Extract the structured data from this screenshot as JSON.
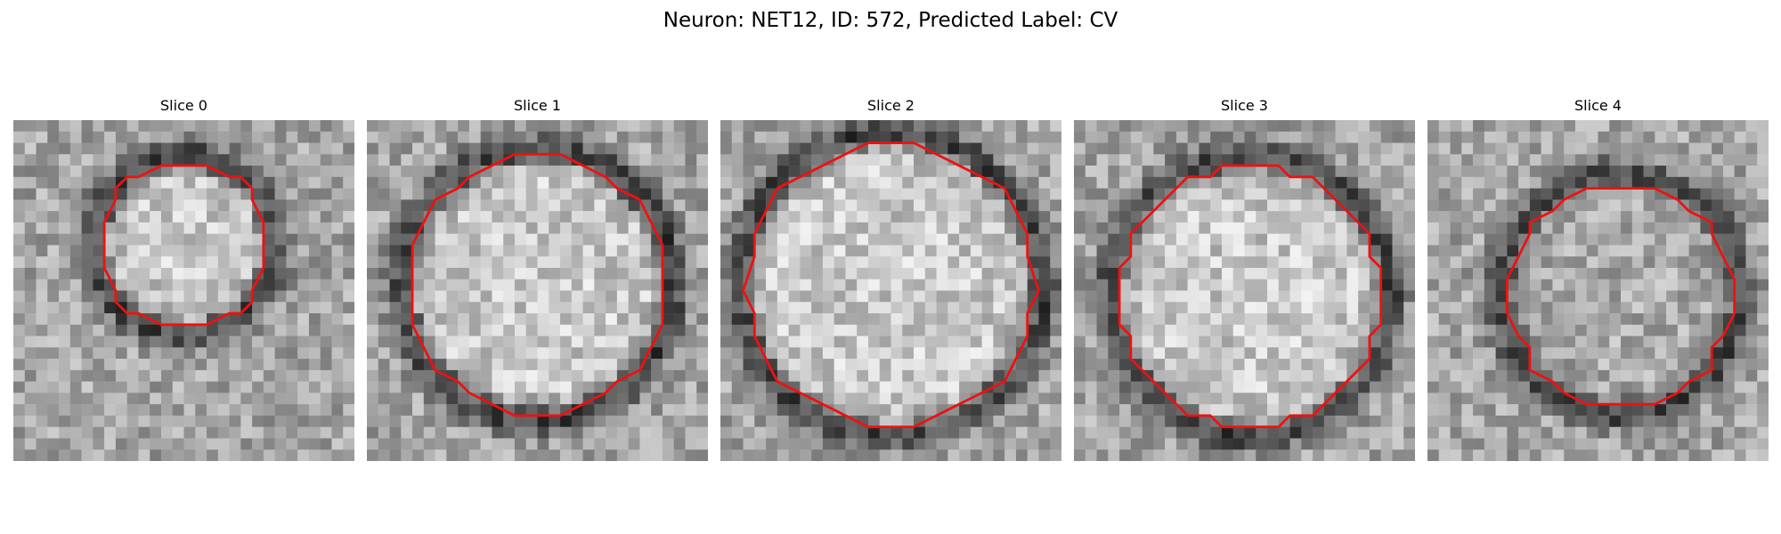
{
  "figure": {
    "title": "Neuron: NET12, ID: 572, Predicted Label: CV",
    "contour_color": "#ee1111"
  },
  "slices": [
    {
      "title": "Slice 0",
      "seed": 11,
      "radius": 7.2,
      "cx": 15,
      "cy": 11,
      "center_bright": true
    },
    {
      "title": "Slice 1",
      "seed": 23,
      "radius": 11.2,
      "cx": 15,
      "cy": 14.5,
      "center_bright": true
    },
    {
      "title": "Slice 2",
      "seed": 37,
      "radius": 12.6,
      "cx": 15,
      "cy": 14.5,
      "center_bright": true
    },
    {
      "title": "Slice 3",
      "seed": 49,
      "radius": 11.6,
      "cx": 15.5,
      "cy": 15.5,
      "center_bright": true
    },
    {
      "title": "Slice 4",
      "seed": 61,
      "radius": 9.8,
      "cx": 17,
      "cy": 15.3,
      "center_bright": false
    }
  ]
}
